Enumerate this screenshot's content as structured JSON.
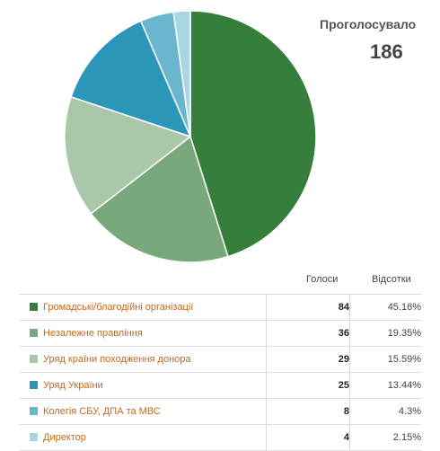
{
  "summary": {
    "label": "Проголосувало",
    "total": "186"
  },
  "table": {
    "header_votes": "Голоси",
    "header_percent": "Відсотки",
    "rows": [
      {
        "label": "Громадські/благодійні організації",
        "votes": "84",
        "percent": "45.16%"
      },
      {
        "label": "Незалежне правління",
        "votes": "36",
        "percent": "19.35%"
      },
      {
        "label": "Уряд країни походження донора",
        "votes": "29",
        "percent": "15.59%"
      },
      {
        "label": "Уряд України",
        "votes": "25",
        "percent": "13.44%"
      },
      {
        "label": "Колегія СБУ, ДПА та МВС",
        "votes": "8",
        "percent": "4.3%"
      },
      {
        "label": "Директор",
        "votes": "4",
        "percent": "2.15%"
      }
    ]
  },
  "chart_data": {
    "type": "pie",
    "categories": [
      "Громадські/благодійні організації",
      "Незалежне правління",
      "Уряд країни походження донора",
      "Уряд України",
      "Колегія СБУ, ДПА та МВС",
      "Директор"
    ],
    "values": [
      84,
      36,
      29,
      25,
      8,
      4
    ],
    "percentages": [
      45.16,
      19.35,
      15.59,
      13.44,
      4.3,
      2.15
    ],
    "colors": [
      "#357e3c",
      "#7aa87d",
      "#a9c8a9",
      "#2c96b8",
      "#6bb6cf",
      "#a9d6e3"
    ],
    "total": 186,
    "start": "12 o'clock",
    "direction": "clockwise"
  }
}
